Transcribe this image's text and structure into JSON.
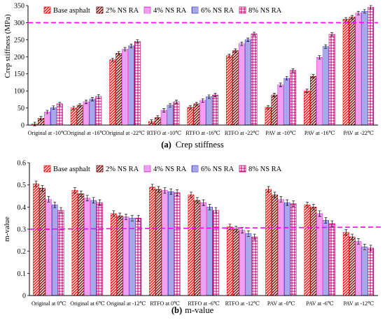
{
  "chart_data": [
    {
      "type": "bar",
      "title": "Crep stiffness",
      "caption_letter": "(a)",
      "ylabel": "Crep stiffness (MPa)",
      "xlabel": "",
      "ylim": [
        0,
        350
      ],
      "yticks": [
        "0",
        "50",
        "100",
        "150",
        "200",
        "250",
        "300",
        "350"
      ],
      "grid": false,
      "legend_position": "top",
      "reference_line": {
        "value": 300,
        "color": "#ff00ff",
        "style": "dashed"
      },
      "categories": [
        "Original at -10℃",
        "Original at -16℃",
        "Original at -22℃",
        "RTFO at -10℃",
        "RTFO at -16℃",
        "RTFO  at -22℃",
        "PAV  at -10℃",
        "PAV  at -16℃",
        "PAV  at -22℃"
      ],
      "series": [
        {
          "name": "Base asphalt",
          "color": "#ff0000",
          "pattern": "diag",
          "values": [
            3,
            50,
            191,
            10,
            52,
            203,
            52,
            100,
            310
          ]
        },
        {
          "name": "2% NS RA",
          "color": "#7a0000",
          "pattern": "diag",
          "values": [
            20,
            58,
            210,
            22,
            62,
            218,
            88,
            143,
            316
          ]
        },
        {
          "name": "4% NS RA",
          "color": "#e040e0",
          "pattern": "hline",
          "values": [
            38,
            68,
            222,
            43,
            72,
            238,
            118,
            198,
            328
          ]
        },
        {
          "name": "6% NS RA",
          "color": "#5050d0",
          "pattern": "vline",
          "values": [
            51,
            76,
            232,
            58,
            83,
            250,
            137,
            230,
            333
          ]
        },
        {
          "name": "8% NS RA",
          "color": "#c00070",
          "pattern": "grid",
          "values": [
            62,
            84,
            245,
            68,
            88,
            267,
            160,
            266,
            345
          ]
        }
      ]
    },
    {
      "type": "bar",
      "title": "m-value",
      "caption_letter": "(b)",
      "ylabel": "m-value",
      "xlabel": "",
      "ylim": [
        0,
        0.6
      ],
      "yticks": [
        "0",
        "0.1",
        "0.2",
        "0.3",
        "0.4",
        "0.5",
        "0.6"
      ],
      "grid": false,
      "legend_position": "top",
      "reference_line": {
        "value": 0.3,
        "color": "#ff00ff",
        "style": "dashed"
      },
      "categories": [
        "Original at 0℃",
        "Original at 6℃",
        "Original at -12℃",
        "RTFO at 0℃",
        "RTFO at -6℃",
        "RTFO at -12℃",
        "PAV at -0℃",
        "PAV at -6℃",
        "PAV at -12℃"
      ],
      "series": [
        {
          "name": "Base asphalt",
          "color": "#ff0000",
          "pattern": "diag",
          "values": [
            0.505,
            0.475,
            0.37,
            0.49,
            0.455,
            0.31,
            0.48,
            0.41,
            0.285
          ]
        },
        {
          "name": "2% NS RA",
          "color": "#7a0000",
          "pattern": "diag",
          "values": [
            0.485,
            0.46,
            0.36,
            0.48,
            0.43,
            0.3,
            0.455,
            0.4,
            0.265
          ]
        },
        {
          "name": "4% NS RA",
          "color": "#e040e0",
          "pattern": "hline",
          "values": [
            0.435,
            0.44,
            0.355,
            0.475,
            0.42,
            0.295,
            0.435,
            0.37,
            0.245
          ]
        },
        {
          "name": "6% NS RA",
          "color": "#5050d0",
          "pattern": "vline",
          "values": [
            0.41,
            0.43,
            0.35,
            0.47,
            0.4,
            0.28,
            0.42,
            0.34,
            0.22
          ]
        },
        {
          "name": "8% NS RA",
          "color": "#c00070",
          "pattern": "grid",
          "values": [
            0.385,
            0.42,
            0.35,
            0.465,
            0.385,
            0.265,
            0.415,
            0.325,
            0.215
          ]
        }
      ]
    }
  ]
}
